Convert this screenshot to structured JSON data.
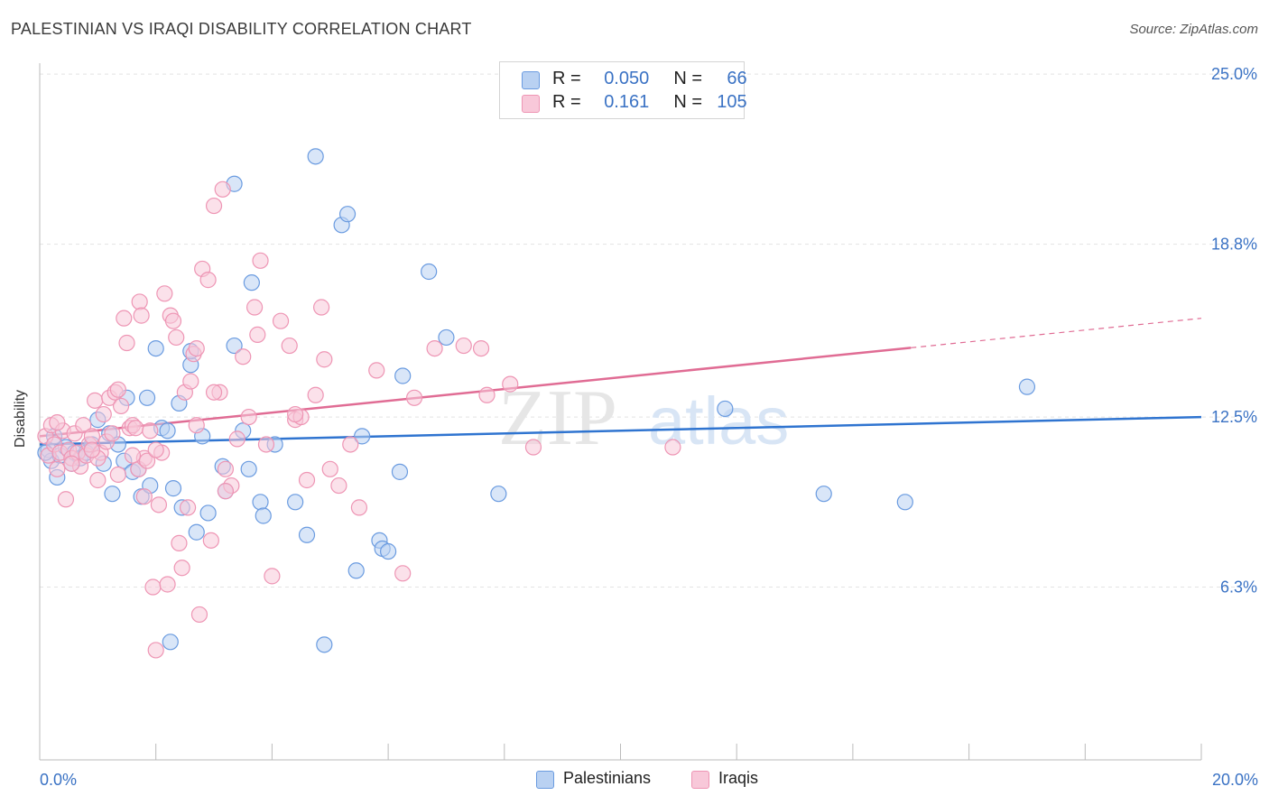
{
  "title": "PALESTINIAN VS IRAQI DISABILITY CORRELATION CHART",
  "source": "Source: ZipAtlas.com",
  "watermark": {
    "zip": "ZIP",
    "atlas": "atlas"
  },
  "legend_top": [
    {
      "r_label": "R =",
      "r_value": "0.050",
      "n_label": "N =",
      "n_value": "66"
    },
    {
      "r_label": "R =",
      "r_value": "0.161",
      "n_label": "N =",
      "n_value": "105"
    }
  ],
  "chart_data": {
    "type": "scatter",
    "ylabel": "Disability",
    "xlim": [
      0,
      20
    ],
    "ylim": [
      0,
      25.4
    ],
    "x_tick_labels": [
      {
        "value": 0,
        "label": "0.0%"
      },
      {
        "value": 20,
        "label": "20.0%"
      }
    ],
    "y_tick_labels": [
      {
        "value": 25.0,
        "label": "25.0%"
      },
      {
        "value": 18.8,
        "label": "18.8%"
      },
      {
        "value": 12.5,
        "label": "12.5%"
      },
      {
        "value": 6.3,
        "label": "6.3%"
      }
    ],
    "x_minor_ticks": [
      0,
      2,
      4,
      6,
      8,
      10,
      12,
      14,
      16,
      18,
      20
    ],
    "grid": true,
    "legend_position": "top-center",
    "series": [
      {
        "name": "Palestinians",
        "color": "#6a9be0",
        "fill": "#b9d1f2",
        "line_color": "#2f74d0",
        "trend": {
          "x0": 0,
          "y0": 11.5,
          "x1": 20,
          "y1": 12.5,
          "dash_from": null
        },
        "points": [
          [
            0.15,
            11.3
          ],
          [
            0.2,
            10.9
          ],
          [
            0.3,
            10.3
          ],
          [
            0.35,
            11.1
          ],
          [
            0.45,
            11.4
          ],
          [
            0.55,
            10.8
          ],
          [
            0.6,
            11.2
          ],
          [
            0.7,
            11.0
          ],
          [
            0.8,
            11.2
          ],
          [
            0.9,
            11.5
          ],
          [
            1.0,
            12.4
          ],
          [
            1.1,
            10.8
          ],
          [
            1.2,
            11.9
          ],
          [
            1.25,
            9.7
          ],
          [
            1.35,
            11.5
          ],
          [
            1.45,
            10.9
          ],
          [
            1.5,
            13.2
          ],
          [
            1.6,
            10.5
          ],
          [
            1.7,
            10.6
          ],
          [
            1.75,
            9.6
          ],
          [
            1.85,
            13.2
          ],
          [
            1.9,
            10.0
          ],
          [
            2.0,
            15.0
          ],
          [
            2.1,
            12.1
          ],
          [
            2.2,
            12.0
          ],
          [
            2.3,
            9.9
          ],
          [
            2.4,
            13.0
          ],
          [
            2.45,
            9.2
          ],
          [
            2.6,
            14.4
          ],
          [
            2.6,
            14.9
          ],
          [
            2.7,
            8.3
          ],
          [
            2.8,
            11.8
          ],
          [
            2.9,
            9.0
          ],
          [
            3.15,
            10.7
          ],
          [
            3.2,
            9.8
          ],
          [
            3.35,
            21.0
          ],
          [
            3.35,
            15.1
          ],
          [
            3.5,
            12.0
          ],
          [
            3.6,
            10.6
          ],
          [
            3.65,
            17.4
          ],
          [
            3.8,
            9.4
          ],
          [
            3.85,
            8.9
          ],
          [
            4.05,
            11.5
          ],
          [
            4.4,
            9.4
          ],
          [
            4.6,
            8.2
          ],
          [
            4.75,
            22.0
          ],
          [
            4.9,
            4.2
          ],
          [
            5.2,
            19.5
          ],
          [
            5.3,
            19.9
          ],
          [
            5.45,
            6.9
          ],
          [
            5.55,
            11.8
          ],
          [
            5.85,
            8.0
          ],
          [
            5.9,
            7.7
          ],
          [
            6.0,
            7.6
          ],
          [
            6.2,
            10.5
          ],
          [
            6.25,
            14.0
          ],
          [
            6.7,
            17.8
          ],
          [
            7.0,
            15.4
          ],
          [
            7.9,
            9.7
          ],
          [
            11.8,
            12.8
          ],
          [
            13.5,
            9.7
          ],
          [
            14.9,
            9.4
          ],
          [
            17.0,
            13.6
          ],
          [
            2.25,
            4.3
          ],
          [
            0.1,
            11.2
          ],
          [
            0.25,
            11.8
          ]
        ]
      },
      {
        "name": "Iraqis",
        "color": "#ee95b4",
        "fill": "#f8c8d9",
        "line_color": "#e06c94",
        "trend": {
          "x0": 0,
          "y0": 11.8,
          "x1": 20,
          "y1": 16.1,
          "dash_from": 15.0
        },
        "points": [
          [
            0.1,
            11.8
          ],
          [
            0.15,
            11.1
          ],
          [
            0.2,
            12.2
          ],
          [
            0.25,
            11.5
          ],
          [
            0.3,
            10.6
          ],
          [
            0.35,
            11.2
          ],
          [
            0.4,
            12.0
          ],
          [
            0.45,
            9.5
          ],
          [
            0.5,
            11.3
          ],
          [
            0.55,
            11.0
          ],
          [
            0.6,
            11.9
          ],
          [
            0.65,
            11.2
          ],
          [
            0.7,
            10.7
          ],
          [
            0.75,
            12.2
          ],
          [
            0.8,
            11.1
          ],
          [
            0.85,
            11.5
          ],
          [
            0.9,
            11.8
          ],
          [
            0.95,
            13.1
          ],
          [
            1.0,
            10.2
          ],
          [
            1.05,
            11.2
          ],
          [
            1.1,
            12.6
          ],
          [
            1.15,
            11.6
          ],
          [
            1.2,
            13.2
          ],
          [
            1.25,
            11.9
          ],
          [
            1.3,
            13.4
          ],
          [
            1.35,
            13.5
          ],
          [
            1.4,
            12.9
          ],
          [
            1.45,
            16.1
          ],
          [
            1.5,
            15.2
          ],
          [
            1.55,
            12.1
          ],
          [
            1.6,
            12.2
          ],
          [
            1.65,
            12.1
          ],
          [
            1.7,
            10.6
          ],
          [
            1.72,
            16.7
          ],
          [
            1.75,
            16.2
          ],
          [
            1.8,
            11.0
          ],
          [
            1.85,
            10.9
          ],
          [
            1.9,
            12.0
          ],
          [
            1.95,
            6.3
          ],
          [
            2.0,
            4.0
          ],
          [
            2.05,
            9.3
          ],
          [
            2.1,
            11.2
          ],
          [
            2.15,
            17.0
          ],
          [
            2.2,
            6.4
          ],
          [
            2.25,
            16.2
          ],
          [
            2.3,
            16.0
          ],
          [
            2.35,
            15.4
          ],
          [
            2.4,
            7.9
          ],
          [
            2.45,
            7.0
          ],
          [
            2.5,
            13.4
          ],
          [
            2.55,
            9.2
          ],
          [
            2.6,
            13.8
          ],
          [
            2.65,
            14.8
          ],
          [
            2.7,
            15.0
          ],
          [
            2.75,
            5.3
          ],
          [
            2.8,
            17.9
          ],
          [
            2.9,
            17.5
          ],
          [
            3.0,
            20.2
          ],
          [
            3.1,
            13.4
          ],
          [
            3.15,
            20.8
          ],
          [
            3.2,
            10.6
          ],
          [
            3.3,
            10.0
          ],
          [
            3.4,
            11.7
          ],
          [
            3.5,
            14.7
          ],
          [
            3.6,
            12.5
          ],
          [
            3.7,
            16.5
          ],
          [
            3.75,
            15.5
          ],
          [
            3.8,
            18.2
          ],
          [
            3.9,
            11.5
          ],
          [
            4.0,
            6.7
          ],
          [
            4.15,
            16.0
          ],
          [
            4.3,
            15.1
          ],
          [
            4.4,
            12.4
          ],
          [
            4.5,
            12.5
          ],
          [
            4.6,
            10.2
          ],
          [
            4.75,
            13.3
          ],
          [
            4.85,
            16.5
          ],
          [
            4.9,
            14.6
          ],
          [
            5.0,
            10.6
          ],
          [
            5.15,
            10.0
          ],
          [
            5.35,
            11.5
          ],
          [
            5.5,
            9.2
          ],
          [
            5.8,
            14.2
          ],
          [
            6.25,
            6.8
          ],
          [
            6.45,
            13.2
          ],
          [
            6.8,
            15.0
          ],
          [
            7.3,
            15.1
          ],
          [
            7.6,
            15.0
          ],
          [
            7.7,
            13.3
          ],
          [
            8.1,
            13.7
          ],
          [
            8.5,
            11.4
          ],
          [
            10.9,
            11.4
          ],
          [
            1.0,
            11.0
          ],
          [
            0.55,
            10.8
          ],
          [
            1.8,
            9.6
          ],
          [
            2.95,
            8.0
          ],
          [
            3.0,
            13.4
          ],
          [
            2.0,
            11.3
          ],
          [
            1.35,
            10.4
          ],
          [
            0.3,
            12.3
          ],
          [
            4.4,
            12.6
          ],
          [
            0.9,
            11.3
          ],
          [
            1.6,
            11.1
          ],
          [
            2.7,
            12.2
          ],
          [
            3.2,
            9.8
          ]
        ]
      }
    ]
  },
  "legend_bottom": [
    {
      "label": "Palestinians",
      "fill": "#b9d1f2",
      "stroke": "#6a9be0"
    },
    {
      "label": "Iraqis",
      "fill": "#f8c8d9",
      "stroke": "#ee95b4"
    }
  ]
}
